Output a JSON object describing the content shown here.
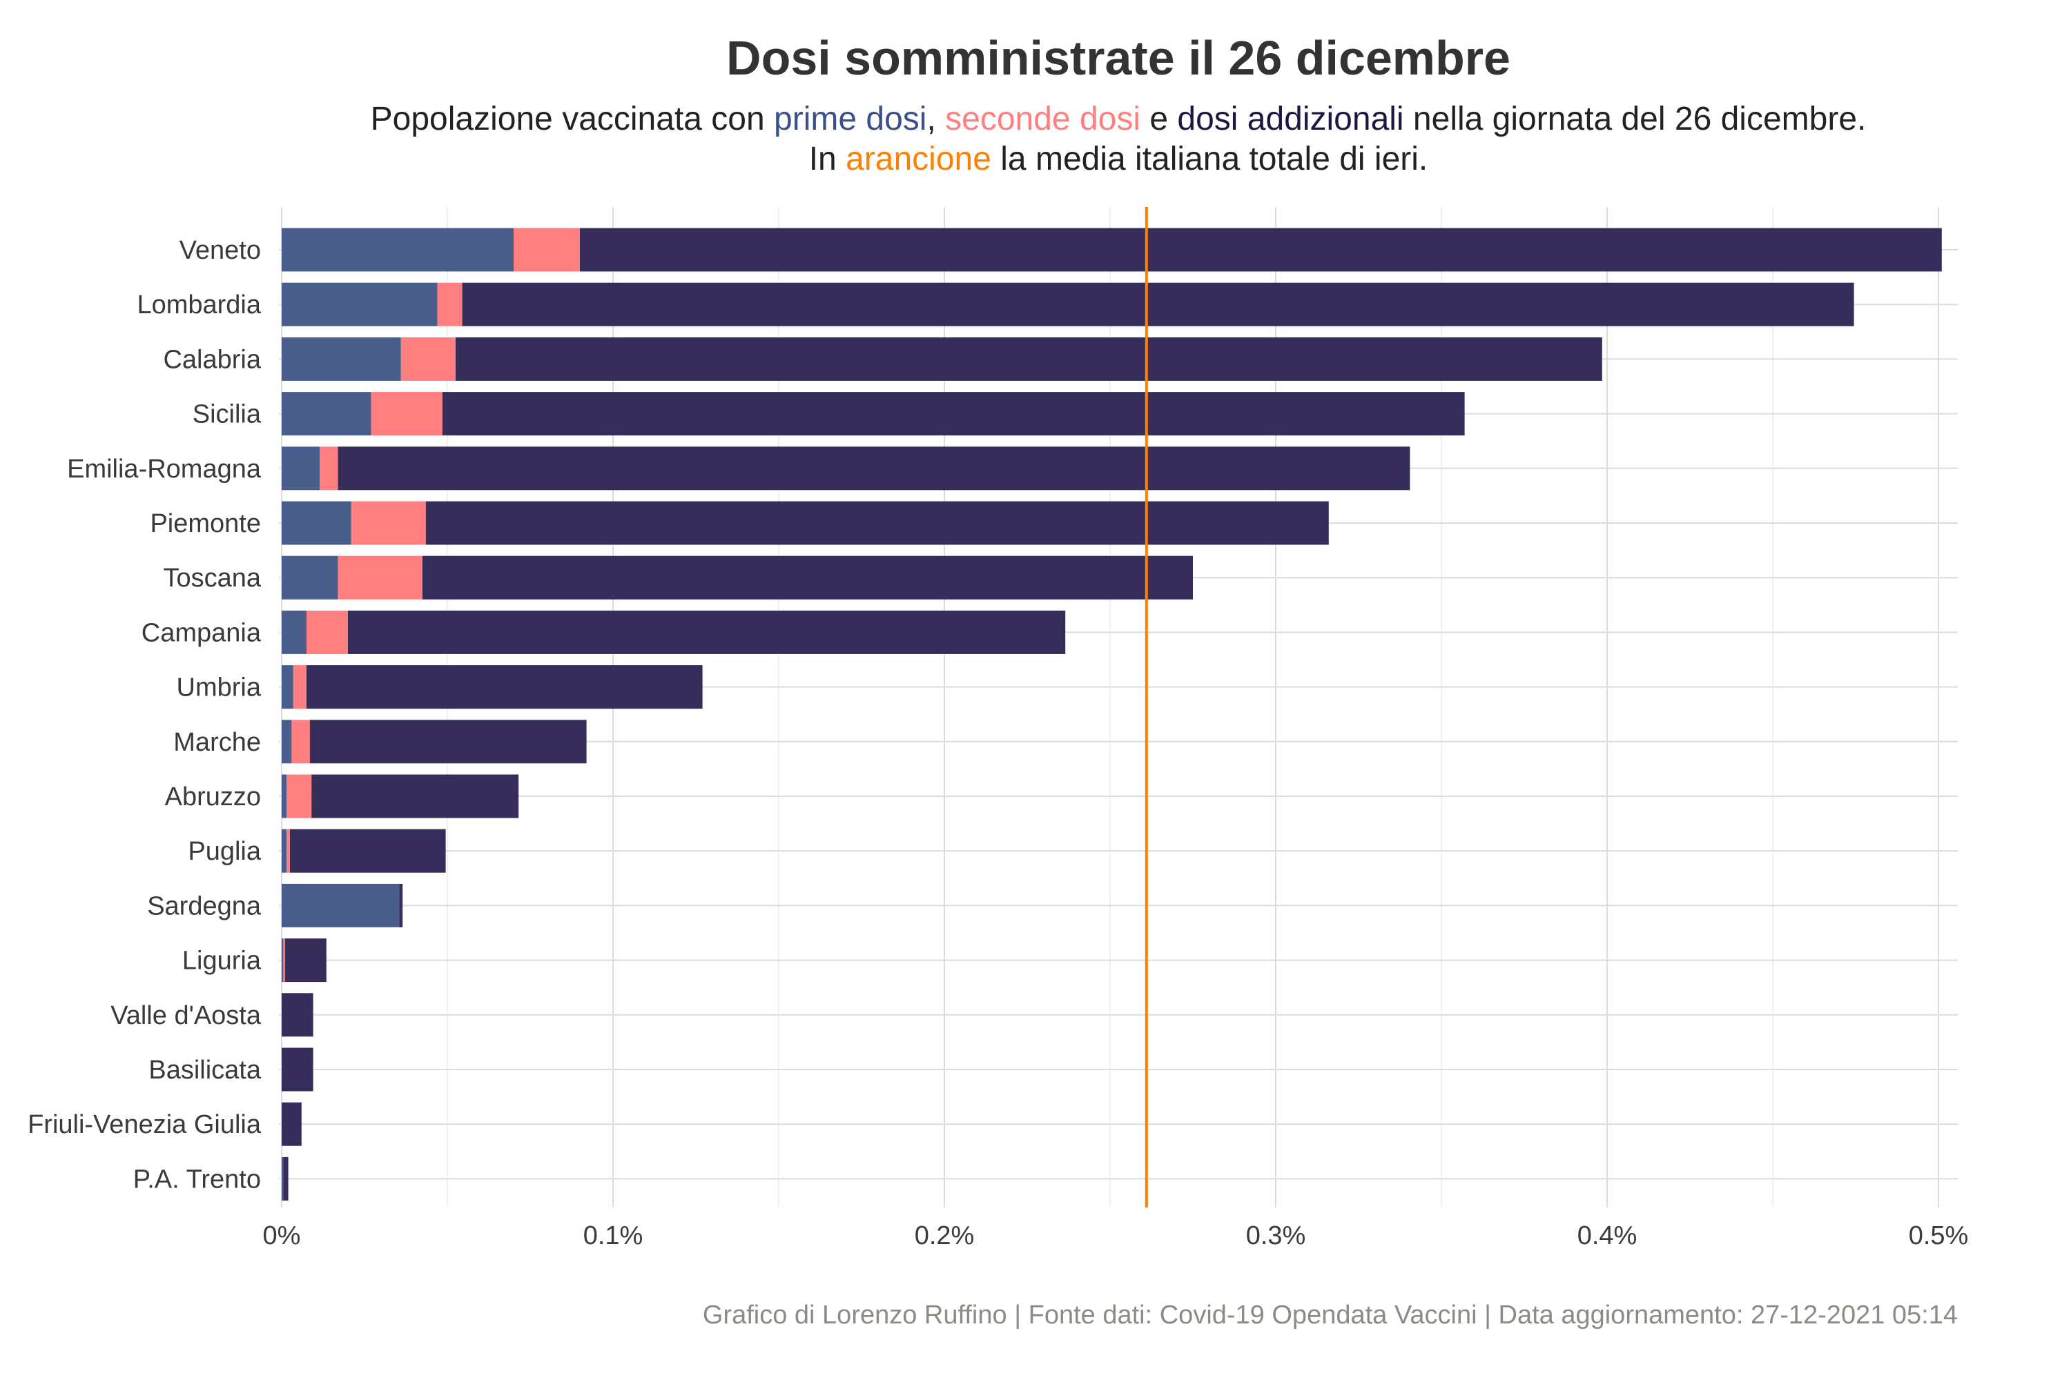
{
  "chart_data": {
    "type": "bar",
    "orientation": "horizontal",
    "stacked": true,
    "title": "Dosi somministrate il 26 dicembre",
    "subtitle": {
      "line1": [
        "Popolazione vaccinata con ",
        "prime dosi",
        ", ",
        "seconde dosi",
        " e ",
        "dosi addizionali",
        " nella giornata del 26 dicembre."
      ],
      "line2": [
        "In ",
        "arancione",
        " la media italiana totale di ieri."
      ]
    },
    "caption": "Grafico di Lorenzo Ruffino | Fonte dati: Covid-19 Opendata Vaccini | Data aggiornamento: 27-12-2021 05:14",
    "xlabel": "",
    "ylabel": "",
    "xlim": [
      0,
      0.505
    ],
    "x_ticks": [
      0,
      0.1,
      0.2,
      0.3,
      0.4,
      0.5
    ],
    "x_tick_labels": [
      "0%",
      "0.1%",
      "0.2%",
      "0.3%",
      "0.4%",
      "0.5%"
    ],
    "reference_line": {
      "label": "media italiana",
      "value": 0.261
    },
    "categories": [
      "Veneto",
      "Lombardia",
      "Calabria",
      "Sicilia",
      "Emilia-Romagna",
      "Piemonte",
      "Toscana",
      "Campania",
      "Umbria",
      "Marche",
      "Abruzzo",
      "Puglia",
      "Sardegna",
      "Liguria",
      "Valle d'Aosta",
      "Basilicata",
      "Friuli-Venezia Giulia",
      "P.A. Trento"
    ],
    "series": [
      {
        "name": "prime dosi",
        "values": [
          0.07,
          0.047,
          0.036,
          0.027,
          0.0115,
          0.021,
          0.017,
          0.0075,
          0.0035,
          0.003,
          0.0015,
          0.0015,
          0.0355,
          0.0005,
          0.0,
          0.0,
          0.0,
          0.0005
        ]
      },
      {
        "name": "seconde dosi",
        "values": [
          0.02,
          0.0075,
          0.0165,
          0.0215,
          0.0055,
          0.0225,
          0.0255,
          0.0125,
          0.004,
          0.0055,
          0.0075,
          0.001,
          0.0,
          0.0005,
          0.0,
          0.0,
          0.0,
          0.0
        ]
      },
      {
        "name": "dosi addizionali",
        "values": [
          0.411,
          0.42,
          0.346,
          0.3085,
          0.3235,
          0.2725,
          0.2325,
          0.2165,
          0.1195,
          0.0835,
          0.0625,
          0.047,
          0.001,
          0.0125,
          0.0095,
          0.0095,
          0.006,
          0.0015
        ]
      }
    ],
    "legend": "inline-in-subtitle"
  },
  "colors": {
    "prime": "#4a5e8c",
    "seconde": "#ff7f80",
    "addizionali": "#372d5b",
    "media": "#ff8000",
    "subtitle_prime": "#3a4f8b",
    "subtitle_seconde": "#ff7f80",
    "subtitle_addizionali": "#1e1642",
    "subtitle_media": "#ff8000"
  }
}
